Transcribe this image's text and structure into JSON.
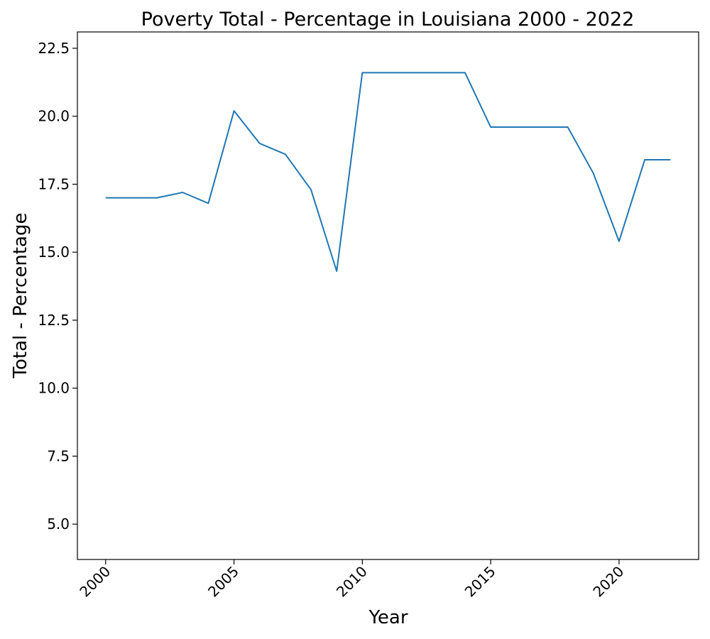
{
  "chart_data": {
    "type": "line",
    "title": "Poverty Total - Percentage in Louisiana 2000 - 2022",
    "xlabel": "Year",
    "ylabel": "Total - Percentage",
    "xlim": [
      1998.9,
      2023.1
    ],
    "ylim": [
      3.7,
      23.1
    ],
    "x_ticks": [
      2000,
      2005,
      2010,
      2015,
      2020
    ],
    "y_ticks": [
      5.0,
      7.5,
      10.0,
      12.5,
      15.0,
      17.5,
      20.0,
      22.5
    ],
    "grid": false,
    "series": [
      {
        "color": "#1f77b4",
        "x": [
          2000,
          2001,
          2002,
          2003,
          2004,
          2005,
          2006,
          2007,
          2008,
          2009,
          2010,
          2011,
          2012,
          2013,
          2014,
          2015,
          2016,
          2017,
          2018,
          2019,
          2020,
          2021,
          2022
        ],
        "values": [
          17.0,
          17.0,
          17.0,
          17.2,
          16.8,
          20.2,
          19.0,
          18.6,
          17.3,
          14.3,
          21.6,
          21.6,
          21.6,
          21.6,
          21.6,
          19.6,
          19.6,
          19.6,
          19.6,
          17.9,
          15.4,
          18.4,
          18.4
        ]
      }
    ]
  }
}
